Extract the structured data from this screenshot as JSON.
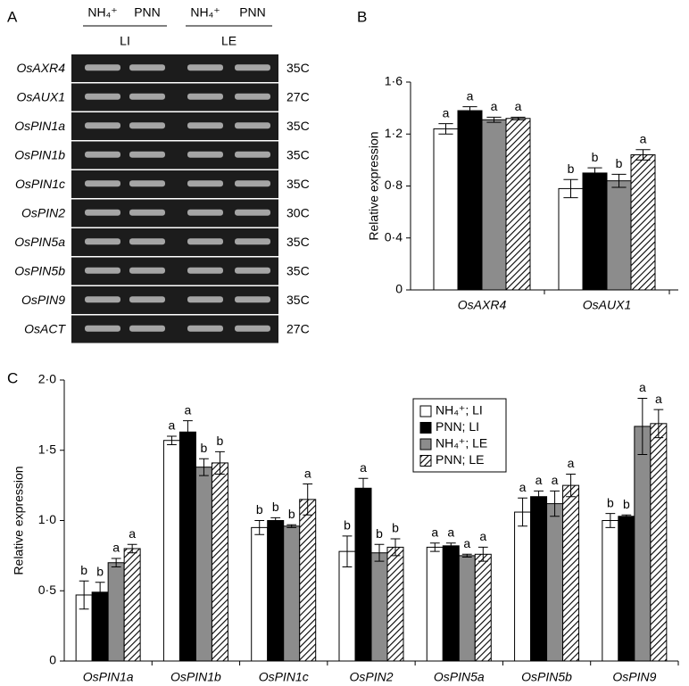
{
  "gel": {
    "panel": "A",
    "groups": [
      {
        "label": "LI",
        "lanes": [
          "NH₄⁺",
          "PNN"
        ]
      },
      {
        "label": "LE",
        "lanes": [
          "NH₄⁺",
          "PNN"
        ]
      }
    ],
    "rows": [
      {
        "gene": "OsAXR4",
        "cycles": "35C"
      },
      {
        "gene": "OsAUX1",
        "cycles": "27C"
      },
      {
        "gene": "OsPIN1a",
        "cycles": "35C"
      },
      {
        "gene": "OsPIN1b",
        "cycles": "35C"
      },
      {
        "gene": "OsPIN1c",
        "cycles": "35C"
      },
      {
        "gene": "OsPIN2",
        "cycles": "30C"
      },
      {
        "gene": "OsPIN5a",
        "cycles": "35C"
      },
      {
        "gene": "OsPIN5b",
        "cycles": "35C"
      },
      {
        "gene": "OsPIN9",
        "cycles": "35C"
      },
      {
        "gene": "OsACT",
        "cycles": "27C"
      }
    ]
  },
  "chart_data": [
    {
      "type": "bar",
      "panel": "B",
      "ylabel": "Relative expression",
      "categories": [
        "OsAXR4",
        "OsAUX1"
      ],
      "series": [
        {
          "color": "#ffffff",
          "values": [
            1.24,
            0.78
          ],
          "errors": [
            0.04,
            0.07
          ],
          "letters": [
            "a",
            "b"
          ]
        },
        {
          "color": "#000000",
          "values": [
            1.38,
            0.9
          ],
          "errors": [
            0.03,
            0.04
          ],
          "letters": [
            "a",
            "b"
          ]
        },
        {
          "color": "#8c8c8c",
          "values": [
            1.31,
            0.84
          ],
          "errors": [
            0.02,
            0.05
          ],
          "letters": [
            "a",
            "b"
          ]
        },
        {
          "color": "#ffffff",
          "pattern": "hatch",
          "values": [
            1.32,
            1.04
          ],
          "errors": [
            0.01,
            0.04
          ],
          "letters": [
            "a",
            "a"
          ]
        }
      ],
      "ylim": [
        0,
        1.6
      ],
      "yticks": [
        0,
        {
          "value": 0.4,
          "label": "0·4"
        },
        {
          "value": 0.8,
          "label": "0·8"
        },
        {
          "value": 1.2,
          "label": "1·2"
        },
        {
          "value": 1.6,
          "label": "1·6"
        }
      ]
    },
    {
      "type": "bar",
      "panel": "C",
      "ylabel": "Relative expression",
      "categories": [
        "OsPIN1a",
        "OsPIN1b",
        "OsPIN1c",
        "OsPIN2",
        "OsPIN5a",
        "OsPIN5b",
        "OsPIN9"
      ],
      "series": [
        {
          "name": "NH₄⁺; LI",
          "color": "#ffffff",
          "values": [
            0.47,
            1.57,
            0.95,
            0.78,
            0.81,
            1.06,
            1.0
          ],
          "errors": [
            0.1,
            0.03,
            0.05,
            0.11,
            0.03,
            0.1,
            0.05
          ],
          "letters": [
            "b",
            "a",
            "b",
            "b",
            "a",
            "a",
            "b"
          ]
        },
        {
          "name": "PNN; LI",
          "color": "#000000",
          "values": [
            0.49,
            1.63,
            1.0,
            1.23,
            0.82,
            1.17,
            1.03
          ],
          "errors": [
            0.07,
            0.08,
            0.02,
            0.07,
            0.02,
            0.04,
            0.01
          ],
          "letters": [
            "b",
            "a",
            "b",
            "a",
            "a",
            "a",
            "b"
          ]
        },
        {
          "name": "NH₄⁺; LE",
          "color": "#8c8c8c",
          "values": [
            0.7,
            1.38,
            0.96,
            0.77,
            0.75,
            1.12,
            1.67
          ],
          "errors": [
            0.03,
            0.06,
            0.01,
            0.06,
            0.01,
            0.09,
            0.2
          ],
          "letters": [
            "a",
            "b",
            "b",
            "b",
            "a",
            "a",
            "a"
          ]
        },
        {
          "name": "PNN; LE",
          "color": "#ffffff",
          "pattern": "hatch",
          "values": [
            0.8,
            1.41,
            1.15,
            0.81,
            0.76,
            1.25,
            1.69
          ],
          "errors": [
            0.03,
            0.08,
            0.11,
            0.06,
            0.05,
            0.08,
            0.1
          ],
          "letters": [
            "a",
            "b",
            "a",
            "b",
            "a",
            "a",
            "a"
          ]
        }
      ],
      "ylim": [
        0,
        2
      ],
      "yticks": [
        0,
        {
          "value": 0.5,
          "label": "0·5"
        },
        {
          "value": 1,
          "label": "1·0"
        },
        {
          "value": 1.5,
          "label": "1·5"
        },
        {
          "value": 2,
          "label": "2·0"
        }
      ],
      "legend": "upper-right"
    }
  ]
}
